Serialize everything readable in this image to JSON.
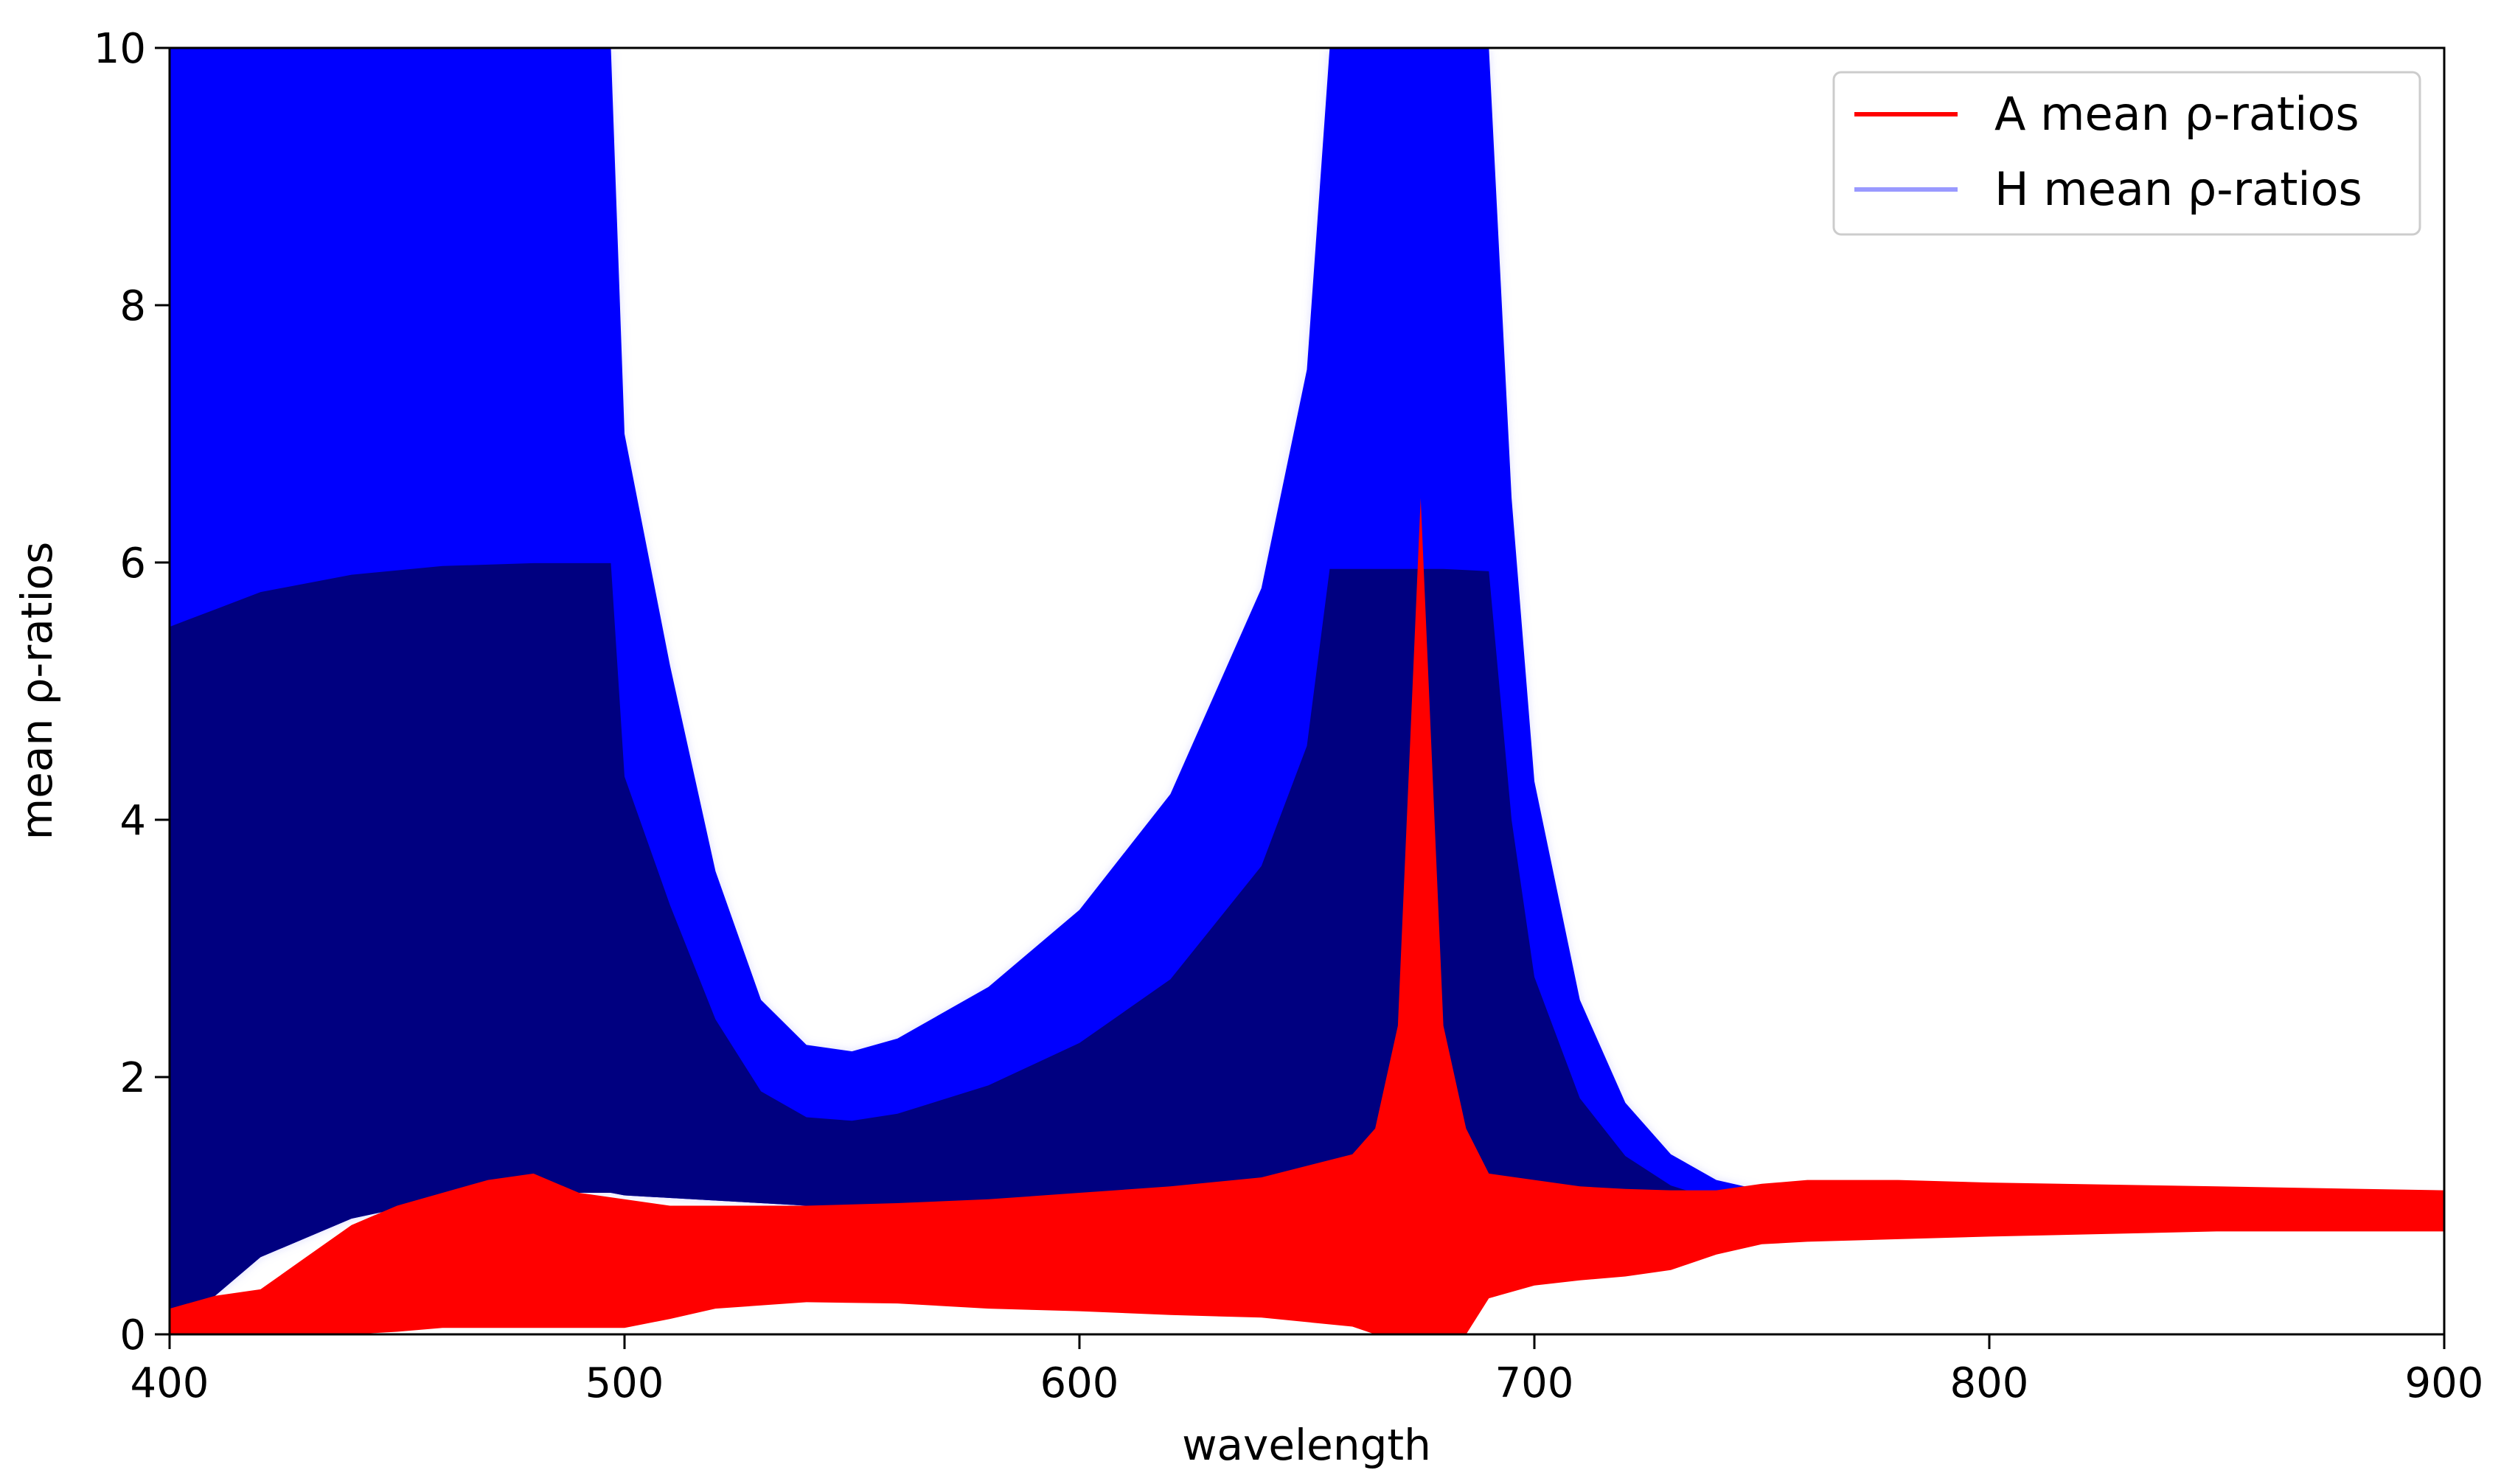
{
  "chart_data": {
    "type": "area",
    "title": "",
    "xlabel": "wavelength",
    "ylabel": "mean ρ-ratios",
    "xlim": [
      400,
      900
    ],
    "ylim": [
      0,
      10
    ],
    "xticks": [
      "400",
      "500",
      "600",
      "700",
      "800",
      "900"
    ],
    "yticks": [
      "0",
      "2",
      "4",
      "6",
      "8",
      "10"
    ],
    "grid": false,
    "legend": {
      "placement": "top-right",
      "entries": [
        {
          "label": "A mean ρ-ratios",
          "color": "#ff0000"
        },
        {
          "label": "H mean ρ-ratios",
          "color": "#9999ff"
        }
      ]
    },
    "colors": {
      "red_band": "#ff0000",
      "blue_band": "#0000ff",
      "blue_dense": "#000080",
      "blue_light": "#9999ff"
    },
    "series": [
      {
        "name": "A mean ρ-ratios",
        "x": [
          400,
          410,
          420,
          430,
          440,
          450,
          460,
          470,
          480,
          490,
          500,
          510,
          520,
          540,
          560,
          580,
          600,
          620,
          640,
          660,
          665,
          670,
          675,
          680,
          685,
          690,
          700,
          710,
          720,
          730,
          740,
          750,
          760,
          780,
          800,
          850,
          900
        ],
        "lower": [
          0.0,
          0.0,
          0.0,
          0.0,
          0.0,
          0.02,
          0.05,
          0.05,
          0.05,
          0.05,
          0.05,
          0.12,
          0.2,
          0.25,
          0.24,
          0.2,
          0.18,
          0.15,
          0.13,
          0.06,
          0.0,
          0.0,
          0.0,
          0.0,
          0.0,
          0.28,
          0.38,
          0.42,
          0.45,
          0.5,
          0.62,
          0.7,
          0.72,
          0.74,
          0.76,
          0.8,
          0.8
        ],
        "upper": [
          0.2,
          0.3,
          0.35,
          0.6,
          0.85,
          1.0,
          1.1,
          1.2,
          1.25,
          1.1,
          1.05,
          1.0,
          1.0,
          1.0,
          1.02,
          1.05,
          1.1,
          1.15,
          1.22,
          1.4,
          1.6,
          2.4,
          6.5,
          2.4,
          1.6,
          1.25,
          1.2,
          1.15,
          1.13,
          1.12,
          1.12,
          1.17,
          1.2,
          1.2,
          1.18,
          1.15,
          1.12
        ]
      },
      {
        "name": "H mean ρ-ratios",
        "x": [
          400,
          410,
          420,
          440,
          460,
          480,
          497,
          500,
          510,
          520,
          530,
          540,
          550,
          560,
          580,
          600,
          620,
          640,
          650,
          655,
          660,
          665,
          670,
          680,
          685,
          690,
          695,
          700,
          710,
          720,
          730,
          740,
          750,
          760,
          780,
          800,
          850,
          900
        ],
        "lower": [
          0.0,
          0.3,
          0.6,
          0.9,
          1.05,
          1.1,
          1.1,
          1.08,
          1.06,
          1.04,
          1.02,
          1.0,
          1.0,
          1.0,
          1.0,
          1.0,
          1.0,
          1.0,
          1.0,
          1.0,
          1.0,
          1.0,
          1.0,
          1.0,
          0.98,
          0.96,
          0.94,
          0.92,
          0.9,
          0.88,
          0.86,
          0.86,
          0.86,
          0.86,
          0.87,
          0.88,
          0.9,
          0.92
        ],
        "upper": [
          10,
          10,
          10,
          10,
          10,
          10,
          10,
          7.0,
          5.2,
          3.6,
          2.6,
          2.25,
          2.2,
          2.3,
          2.7,
          3.3,
          4.2,
          5.8,
          7.5,
          10,
          10,
          10,
          10,
          10,
          10,
          10,
          6.5,
          4.3,
          2.6,
          1.8,
          1.4,
          1.2,
          1.12,
          1.1,
          1.1,
          1.09,
          1.08,
          1.08
        ]
      }
    ]
  }
}
